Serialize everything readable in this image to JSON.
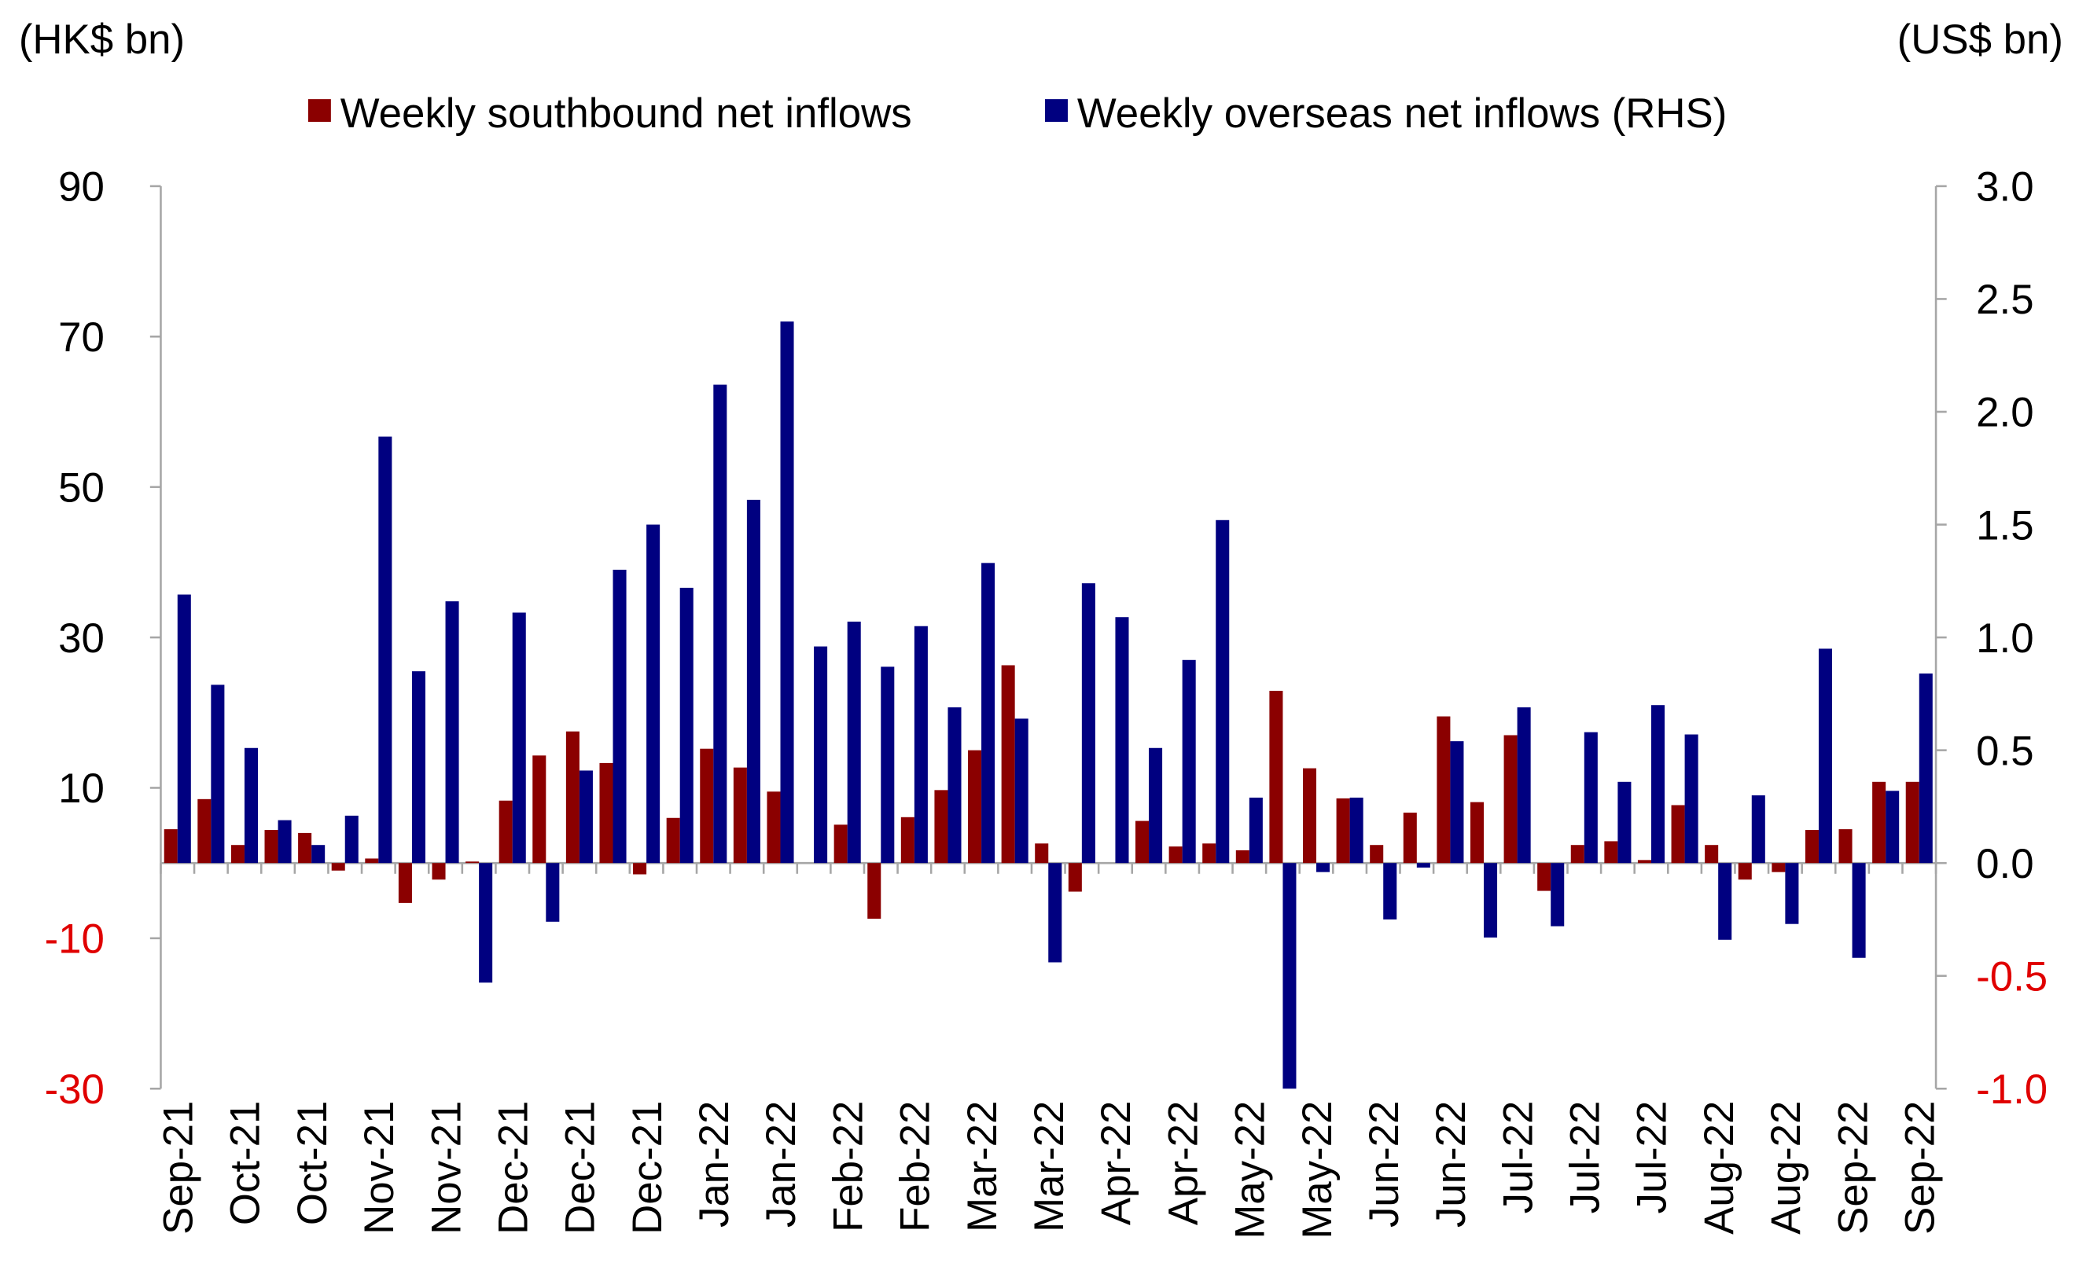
{
  "chart_data": {
    "type": "bar",
    "y_label": "(HK$ bn)",
    "y2_label": "(US$ bn)",
    "categories": [
      "Sep-21",
      null,
      "Oct-21",
      null,
      "Oct-21",
      null,
      "Nov-21",
      null,
      "Nov-21",
      null,
      "Dec-21",
      null,
      "Dec-21",
      null,
      "Dec-21",
      null,
      "Jan-22",
      null,
      "Jan-22",
      null,
      "Feb-22",
      null,
      "Feb-22",
      null,
      "Mar-22",
      null,
      "Mar-22",
      null,
      "Apr-22",
      null,
      "Apr-22",
      null,
      "May-22",
      null,
      "May-22",
      null,
      "Jun-22",
      null,
      "Jun-22",
      null,
      "Jul-22",
      null,
      "Jul-22",
      null,
      "Jul-22",
      null,
      "Aug-22",
      null,
      "Aug-22",
      null,
      "Sep-22",
      null,
      "Sep-22"
    ],
    "series": [
      {
        "name": "Weekly southbound net inflows",
        "color": "#8b0000",
        "values": [
          4.5,
          8.5,
          2.4,
          4.4,
          4.0,
          -1.0,
          0.6,
          -5.3,
          -2.2,
          0.2,
          8.3,
          14.3,
          17.5,
          13.3,
          -1.5,
          6.0,
          15.2,
          12.7,
          9.5,
          0,
          5.1,
          -7.4,
          6.1,
          9.7,
          15.0,
          26.3,
          2.6,
          -3.8,
          0,
          5.6,
          2.2,
          2.6,
          1.7,
          22.9,
          12.6,
          8.6,
          2.4,
          6.7,
          19.5,
          8.1,
          17.0,
          -3.7,
          2.4,
          2.9,
          0.4,
          7.7,
          2.4,
          -2.2,
          -1.2,
          4.4,
          4.5,
          10.8,
          10.8
        ]
      },
      {
        "name": "Weekly overseas net inflows (RHS)",
        "color": "#000080",
        "axis": "y2",
        "values": [
          1.19,
          0.79,
          0.51,
          0.19,
          0.08,
          0.21,
          1.89,
          0.85,
          1.16,
          -0.53,
          1.11,
          -0.26,
          0.41,
          1.3,
          1.5,
          1.22,
          2.12,
          1.61,
          2.4,
          0.96,
          1.07,
          0.87,
          1.05,
          0.69,
          1.33,
          0.64,
          -0.44,
          1.24,
          1.09,
          0.51,
          0.9,
          1.52,
          0.29,
          -1.0,
          -0.04,
          0.29,
          -0.25,
          -0.02,
          0.54,
          -0.33,
          0.69,
          -0.28,
          0.58,
          0.36,
          0.7,
          0.57,
          -0.34,
          0.3,
          -0.27,
          0.95,
          -0.42,
          0.32,
          0.84
        ]
      }
    ],
    "ylim": [
      -30,
      90
    ],
    "yticks": [
      -30,
      -10,
      10,
      30,
      50,
      70,
      90
    ],
    "y2lim": [
      -1.0,
      3.0
    ],
    "y2ticks": [
      {
        "value": -1.0,
        "label": "-1.0"
      },
      -0.5,
      {
        "value": 0.0,
        "label": "0.0"
      },
      0.5,
      {
        "value": 1.0,
        "label": "1.0"
      },
      1.5,
      {
        "value": 2.0,
        "label": "2.0"
      },
      2.5,
      {
        "value": 3.0,
        "label": "3.0"
      }
    ],
    "negative_tick_color": "#e00000",
    "axis_color": "#a6a6a6",
    "grid": false
  }
}
